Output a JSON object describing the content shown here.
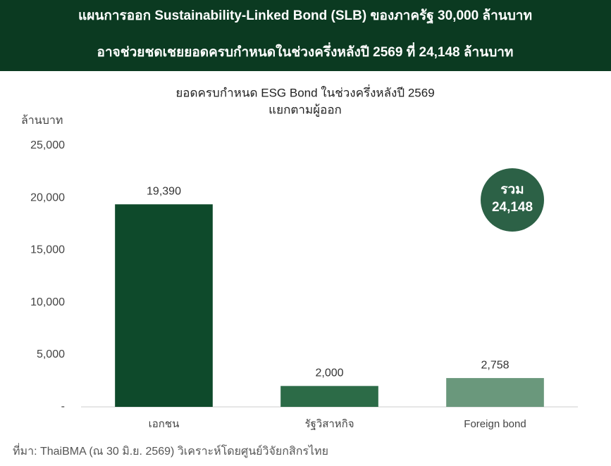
{
  "headline": [
    "แผนการออก Sustainability-Linked Bond (SLB) ของภาครัฐ 30,000 ล้านบาท",
    "อาจช่วยชดเชยยอดครบกำหนดในช่วงครึ่งหลังปี 2569 ที่ 24,148 ล้านบาท"
  ],
  "chart_data": {
    "type": "bar",
    "title": "ยอดครบกำหนด ESG Bond ในช่วงครึ่งหลังปี 2569",
    "subtitle": "แยกตามผู้ออก",
    "y_label": "ล้านบาท",
    "categories": [
      "เอกชน",
      "รัฐวิสาหกิจ",
      "Foreign bond"
    ],
    "values": [
      19390,
      2000,
      2758
    ],
    "value_labels": [
      "19,390",
      "2,000",
      "2,758"
    ],
    "colors": [
      "#0e4a2b",
      "#2c6b47",
      "#6a987c"
    ],
    "ylim": [
      0,
      25000
    ],
    "yticks": [
      {
        "value": 0,
        "label": "-"
      },
      {
        "value": 5000,
        "label": "5,000"
      },
      {
        "value": 10000,
        "label": "10,000"
      },
      {
        "value": 15000,
        "label": "15,000"
      },
      {
        "value": 20000,
        "label": "20,000"
      },
      {
        "value": 25000,
        "label": "25,000"
      }
    ],
    "grid": false,
    "annotation": [
      "รวม",
      "24,148"
    ]
  },
  "source": "ที่มา: ThaiBMA (ณ 30 มิ.ย. 2569) วิเคราะห์โดยศูนย์วิจัยกสิกรไทย"
}
